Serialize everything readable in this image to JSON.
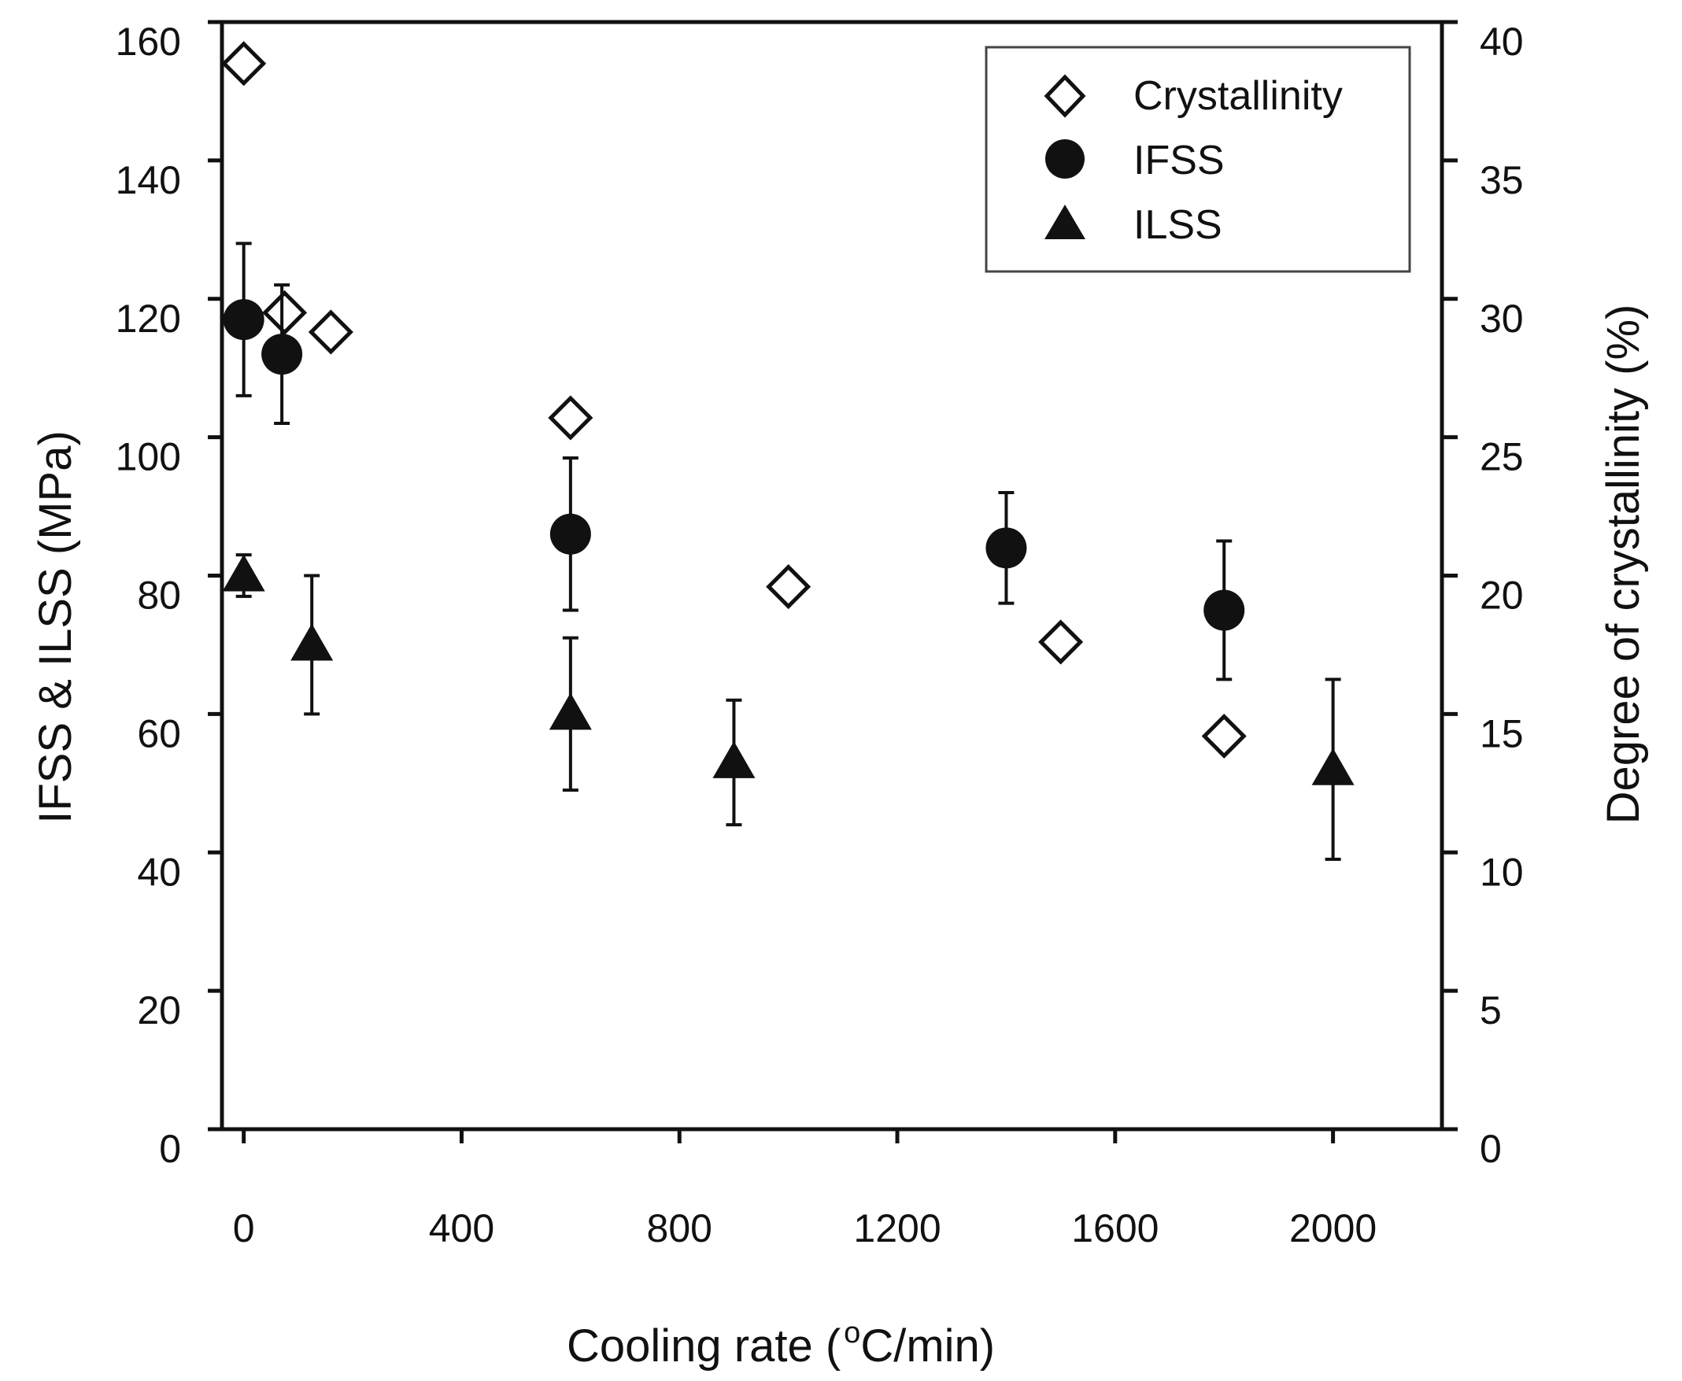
{
  "chart_data": {
    "type": "scatter",
    "title": "",
    "xlabel": "Cooling rate (",
    "xlabel_sup": "o",
    "xlabel_unit": "C/min)",
    "ylabel": "IFSS & ILSS (MPa)",
    "y2label": "Degree of crystallinity (%)",
    "xlim": [
      -40,
      2200
    ],
    "ylim": [
      0,
      160
    ],
    "y2lim": [
      0,
      40
    ],
    "x_ticks": [
      0,
      400,
      800,
      1200,
      1600,
      2000
    ],
    "x_tick_labels": [
      "0",
      "400",
      "800",
      "1200",
      "1600",
      "2000"
    ],
    "y_ticks": [
      0,
      20,
      40,
      60,
      80,
      100,
      120,
      140,
      160
    ],
    "y_tick_labels": [
      "0",
      "20",
      "40",
      "60",
      "80",
      "100",
      "120",
      "140",
      "160"
    ],
    "y2_ticks": [
      0,
      5,
      10,
      15,
      20,
      25,
      30,
      35,
      40
    ],
    "y2_tick_labels": [
      "0",
      "5",
      "10",
      "15",
      "20",
      "25",
      "30",
      "35",
      "40"
    ],
    "grid": false,
    "legend_position": "top-right",
    "series": [
      {
        "name": "Crystallinity",
        "axis": "right",
        "marker": "open-diamond",
        "x": [
          0,
          75,
          160,
          600,
          1000,
          1500,
          1800
        ],
        "values": [
          38.5,
          29.5,
          28.8,
          25.7,
          19.6,
          17.6,
          14.2
        ]
      },
      {
        "name": "IFSS",
        "axis": "left",
        "marker": "filled-circle",
        "x": [
          0,
          70,
          600,
          1400,
          1800
        ],
        "values": [
          117,
          112,
          86,
          84,
          75
        ],
        "error": [
          11,
          10,
          11,
          8,
          10
        ]
      },
      {
        "name": "ILSS",
        "axis": "left",
        "marker": "filled-triangle",
        "x": [
          0,
          125,
          600,
          900,
          2000
        ],
        "values": [
          80,
          70,
          60,
          53,
          52
        ],
        "error": [
          3,
          10,
          11,
          9,
          13
        ]
      }
    ],
    "colors": {
      "axis": "#111111",
      "marker_fill": "#111111",
      "open_marker_fill": "#ffffff",
      "legend_border": "#444444"
    }
  }
}
